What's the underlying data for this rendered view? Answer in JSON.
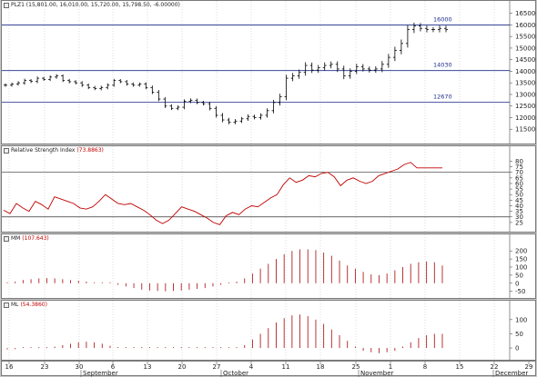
{
  "panes": {
    "price": {
      "title": "PLZ1 (15,801.00, 16,010.00, 15,720.00, 15,798.50, -6.00000)"
    },
    "rsi": {
      "title": "Relative Strength Index",
      "value": "(73.8863)"
    },
    "mm": {
      "title": "MM",
      "value": "(107.643)"
    },
    "ml": {
      "title": "ML",
      "value": "(54.3860)"
    }
  },
  "chart_data": [
    {
      "type": "ohlc",
      "name": "price",
      "ylim": [
        11000,
        16800
      ],
      "yticks": [
        11500,
        12000,
        12500,
        13000,
        13500,
        14000,
        14500,
        15000,
        15500,
        16000,
        16500
      ],
      "levels": [
        16000,
        14030,
        12670
      ],
      "level_labels": [
        "16000",
        "14030",
        "12670"
      ],
      "close": [
        13400,
        13450,
        13500,
        13600,
        13560,
        13700,
        13650,
        13750,
        13800,
        13600,
        13550,
        13500,
        13400,
        13300,
        13250,
        13300,
        13400,
        13600,
        13550,
        13450,
        13400,
        13450,
        13300,
        13100,
        12800,
        12500,
        12400,
        12450,
        12700,
        12750,
        12650,
        12600,
        12400,
        12100,
        11900,
        11800,
        11850,
        11950,
        12050,
        12000,
        12100,
        12300,
        12650,
        12900,
        13700,
        13800,
        13950,
        14250,
        14050,
        14150,
        14250,
        14300,
        14100,
        13800,
        14000,
        14200,
        14100,
        14050,
        14100,
        14300,
        14600,
        14900,
        15200,
        15800,
        15950,
        15850,
        15800,
        15800,
        15850,
        15800
      ],
      "rng": [
        150,
        130,
        140,
        160,
        130,
        150,
        120,
        140,
        150,
        130,
        140,
        130,
        150,
        140,
        130,
        150,
        160,
        140,
        130,
        150,
        140,
        130,
        150,
        170,
        180,
        170,
        150,
        160,
        180,
        150,
        140,
        150,
        170,
        190,
        200,
        180,
        170,
        160,
        180,
        150,
        170,
        200,
        230,
        260,
        300,
        260,
        250,
        280,
        250,
        240,
        260,
        250,
        260,
        280,
        250,
        240,
        220,
        210,
        230,
        280,
        300,
        320,
        340,
        360,
        300,
        260,
        240,
        220,
        240,
        230
      ]
    },
    {
      "type": "line",
      "name": "rsi",
      "ylim": [
        20,
        82
      ],
      "yticks": [
        25,
        30,
        35,
        40,
        45,
        50,
        55,
        60,
        65,
        70,
        75,
        80
      ],
      "hlines": [
        70,
        30
      ],
      "values": [
        36,
        33,
        42,
        38,
        35,
        44,
        41,
        37,
        48,
        46,
        44,
        42,
        38,
        37,
        39,
        44,
        50,
        46,
        42,
        41,
        42,
        39,
        36,
        32,
        27,
        24,
        27,
        33,
        39,
        37,
        35,
        32,
        29,
        25,
        23,
        31,
        34,
        32,
        37,
        40,
        39,
        43,
        47,
        50,
        59,
        65,
        61,
        63,
        67,
        66,
        69,
        70,
        66,
        58,
        63,
        65,
        62,
        60,
        62,
        67,
        69,
        71,
        73,
        77,
        79,
        74,
        74,
        74,
        74,
        74
      ]
    },
    {
      "type": "bar",
      "name": "mm",
      "ylim": [
        -80,
        235
      ],
      "yticks": [
        -50,
        0,
        50,
        100,
        150,
        200
      ],
      "values": [
        5,
        10,
        20,
        25,
        30,
        32,
        30,
        25,
        20,
        15,
        10,
        5,
        2,
        -5,
        -10,
        -20,
        -30,
        -40,
        -45,
        -48,
        -50,
        -48,
        -45,
        -40,
        -35,
        -30,
        -20,
        -10,
        0,
        10,
        30,
        60,
        90,
        120,
        150,
        180,
        200,
        210,
        210,
        205,
        190,
        170,
        140,
        110,
        90,
        70,
        55,
        50,
        60,
        80,
        100,
        120,
        130,
        135,
        130,
        110
      ]
    },
    {
      "type": "bar",
      "name": "ml",
      "ylim": [
        -35,
        125
      ],
      "yticks": [
        0,
        50,
        100
      ],
      "values": [
        -5,
        -4,
        -3,
        -2,
        -1,
        0,
        5,
        10,
        15,
        20,
        22,
        20,
        15,
        8,
        2,
        0,
        0,
        0,
        0,
        0,
        0,
        0,
        0,
        0,
        0,
        0,
        0,
        0,
        0,
        0,
        10,
        30,
        50,
        70,
        90,
        105,
        115,
        118,
        112,
        100,
        85,
        65,
        45,
        25,
        5,
        -10,
        -15,
        -18,
        -15,
        -10,
        5,
        20,
        35,
        45,
        50,
        50
      ]
    }
  ],
  "xaxis": {
    "days": [
      "16",
      "23",
      "30",
      "6",
      "13",
      "20",
      "27",
      "4",
      "11",
      "18",
      "25",
      "1",
      "8",
      "15",
      "22",
      "29",
      "6"
    ],
    "months": [
      "September",
      "October",
      "November",
      "December"
    ]
  }
}
